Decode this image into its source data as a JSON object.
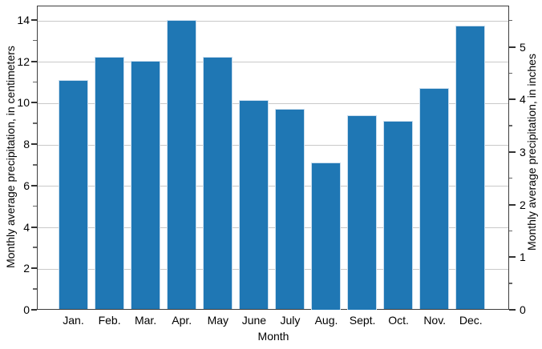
{
  "chart_data": {
    "type": "bar",
    "title": "",
    "xlabel": "Month",
    "ylabel_left": "Monthly average precipitation, in centimeters",
    "ylabel_right": "Monthly average precipitation, in inches",
    "categories": [
      "Jan.",
      "Feb.",
      "Mar.",
      "Apr.",
      "May",
      "June",
      "July",
      "Aug.",
      "Sept.",
      "Oct.",
      "Nov.",
      "Dec."
    ],
    "values_cm": [
      11.1,
      12.2,
      12.0,
      14.0,
      12.2,
      10.1,
      9.7,
      7.1,
      9.4,
      9.1,
      10.7,
      13.7
    ],
    "cm_per_inch": 2.54,
    "ylim_cm": [
      0,
      14.7
    ],
    "yticks_left_cm": [
      0,
      2,
      4,
      6,
      8,
      10,
      12,
      14
    ],
    "yticks_left_labels": [
      "0",
      "2",
      "4",
      "6",
      "8",
      "10",
      "12",
      "14"
    ],
    "yticks_left_minor_cm": [
      1,
      3,
      5,
      7,
      9,
      11,
      13
    ],
    "yticks_right_in": [
      0,
      1,
      2,
      3,
      4,
      5
    ],
    "yticks_right_labels": [
      "0",
      "1",
      "2",
      "3",
      "4",
      "5"
    ],
    "yticks_right_minor_in": [
      0.5,
      1.5,
      2.5,
      3.5,
      4.5,
      5.5
    ],
    "grid": true,
    "legend": "none",
    "colors": {
      "bar": "#1f77b4",
      "bar_edge": "#c9ddee",
      "grid": "#c9c9c9",
      "frame": "#3d3d3d",
      "text": "#000000"
    }
  }
}
